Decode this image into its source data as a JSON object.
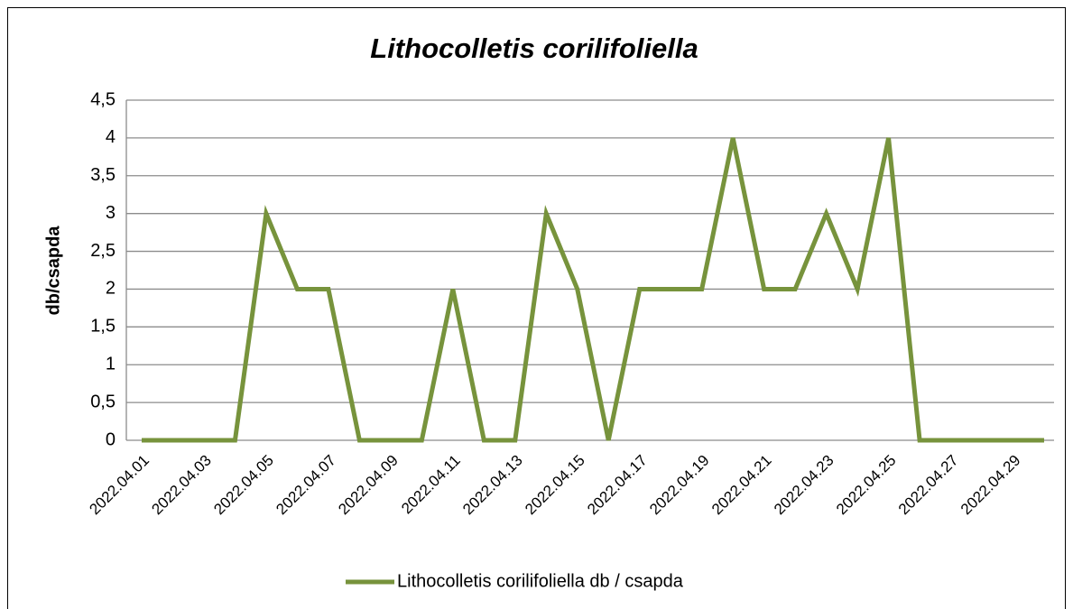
{
  "chart_data": {
    "type": "line",
    "title": "Lithocolletis corilifoliella",
    "y_label": "db/csapda",
    "categories": [
      "2022.04.01",
      null,
      "2022.04.03",
      null,
      "2022.04.05",
      null,
      "2022.04.07",
      null,
      "2022.04.09",
      null,
      "2022.04.11",
      null,
      "2022.04.13",
      null,
      "2022.04.15",
      null,
      "2022.04.17",
      null,
      "2022.04.19",
      null,
      "2022.04.21",
      null,
      "2022.04.23",
      null,
      "2022.04.25",
      null,
      "2022.04.27",
      null,
      "2022.04.29",
      null
    ],
    "series": [
      {
        "name": "Lithocolletis corilifoliella db / csapda",
        "color": "#77933c",
        "values": [
          0,
          0,
          0,
          0,
          3,
          2,
          2,
          0,
          0,
          0,
          2,
          0,
          0,
          3,
          2,
          0,
          2,
          2,
          2,
          4,
          2,
          2,
          3,
          2,
          4,
          0,
          0,
          0,
          0,
          0
        ]
      }
    ],
    "ylim": [
      0,
      4.5
    ],
    "yticks": [
      0,
      {
        "value": 0.5,
        "label": "0,5"
      },
      1,
      {
        "value": 1.5,
        "label": "1,5"
      },
      2,
      {
        "value": 2.5,
        "label": "2,5"
      },
      3,
      {
        "value": 3.5,
        "label": "3,5"
      },
      4,
      {
        "value": 4.5,
        "label": "4,5"
      }
    ],
    "grid": true,
    "legend": "bottom"
  }
}
